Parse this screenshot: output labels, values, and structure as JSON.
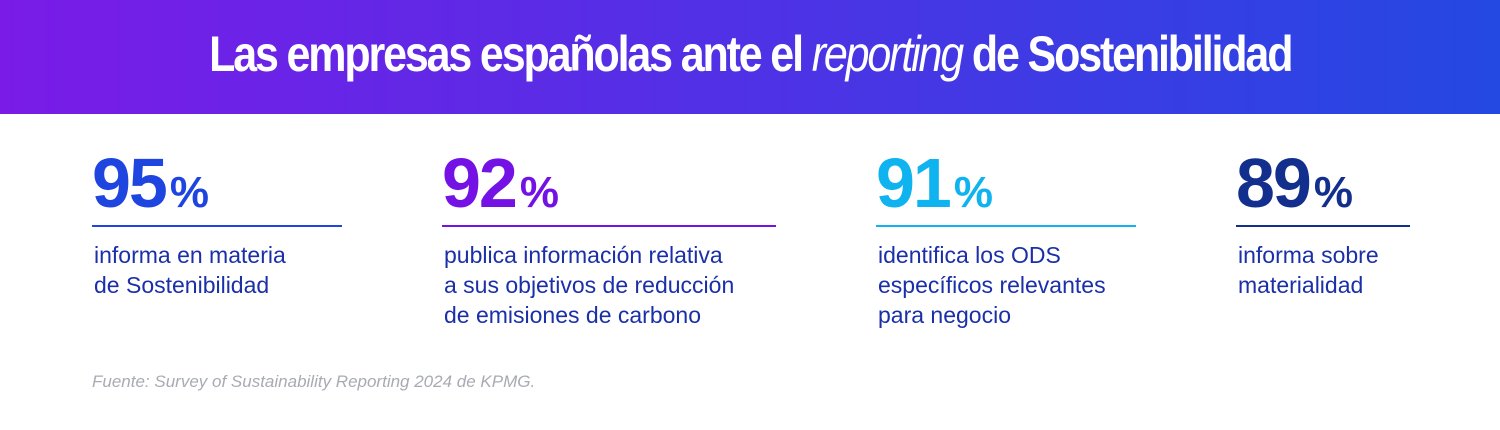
{
  "header": {
    "title_part1": "Las empresas españolas ante el",
    "title_italic": "reporting",
    "title_part2": "de Sostenibilidad",
    "gradient_start": "#7a1be8",
    "gradient_end": "#2448e2"
  },
  "chart_data": {
    "type": "table",
    "title": "Las empresas españolas ante el reporting de Sostenibilidad",
    "unit": "%",
    "stats": [
      {
        "value": 95,
        "unit": "%",
        "lines": [
          "informa en materia",
          "de Sostenibilidad"
        ],
        "color": "#1f45e0"
      },
      {
        "value": 92,
        "unit": "%",
        "lines": [
          "publica información relativa",
          "a sus objetivos de reducción",
          "de emisiones de carbono"
        ],
        "color": "#7412e6"
      },
      {
        "value": 91,
        "unit": "%",
        "lines": [
          "identifica los ODS",
          "específicos relevantes",
          "para negocio"
        ],
        "color": "#0fb3ef"
      },
      {
        "value": 89,
        "unit": "%",
        "lines": [
          "informa sobre",
          "materialidad"
        ],
        "color": "#132f8e"
      }
    ],
    "description_color": "#1a2fa8"
  },
  "footer": {
    "source": "Fuente: Survey of Sustainability Reporting 2024 de KPMG."
  }
}
